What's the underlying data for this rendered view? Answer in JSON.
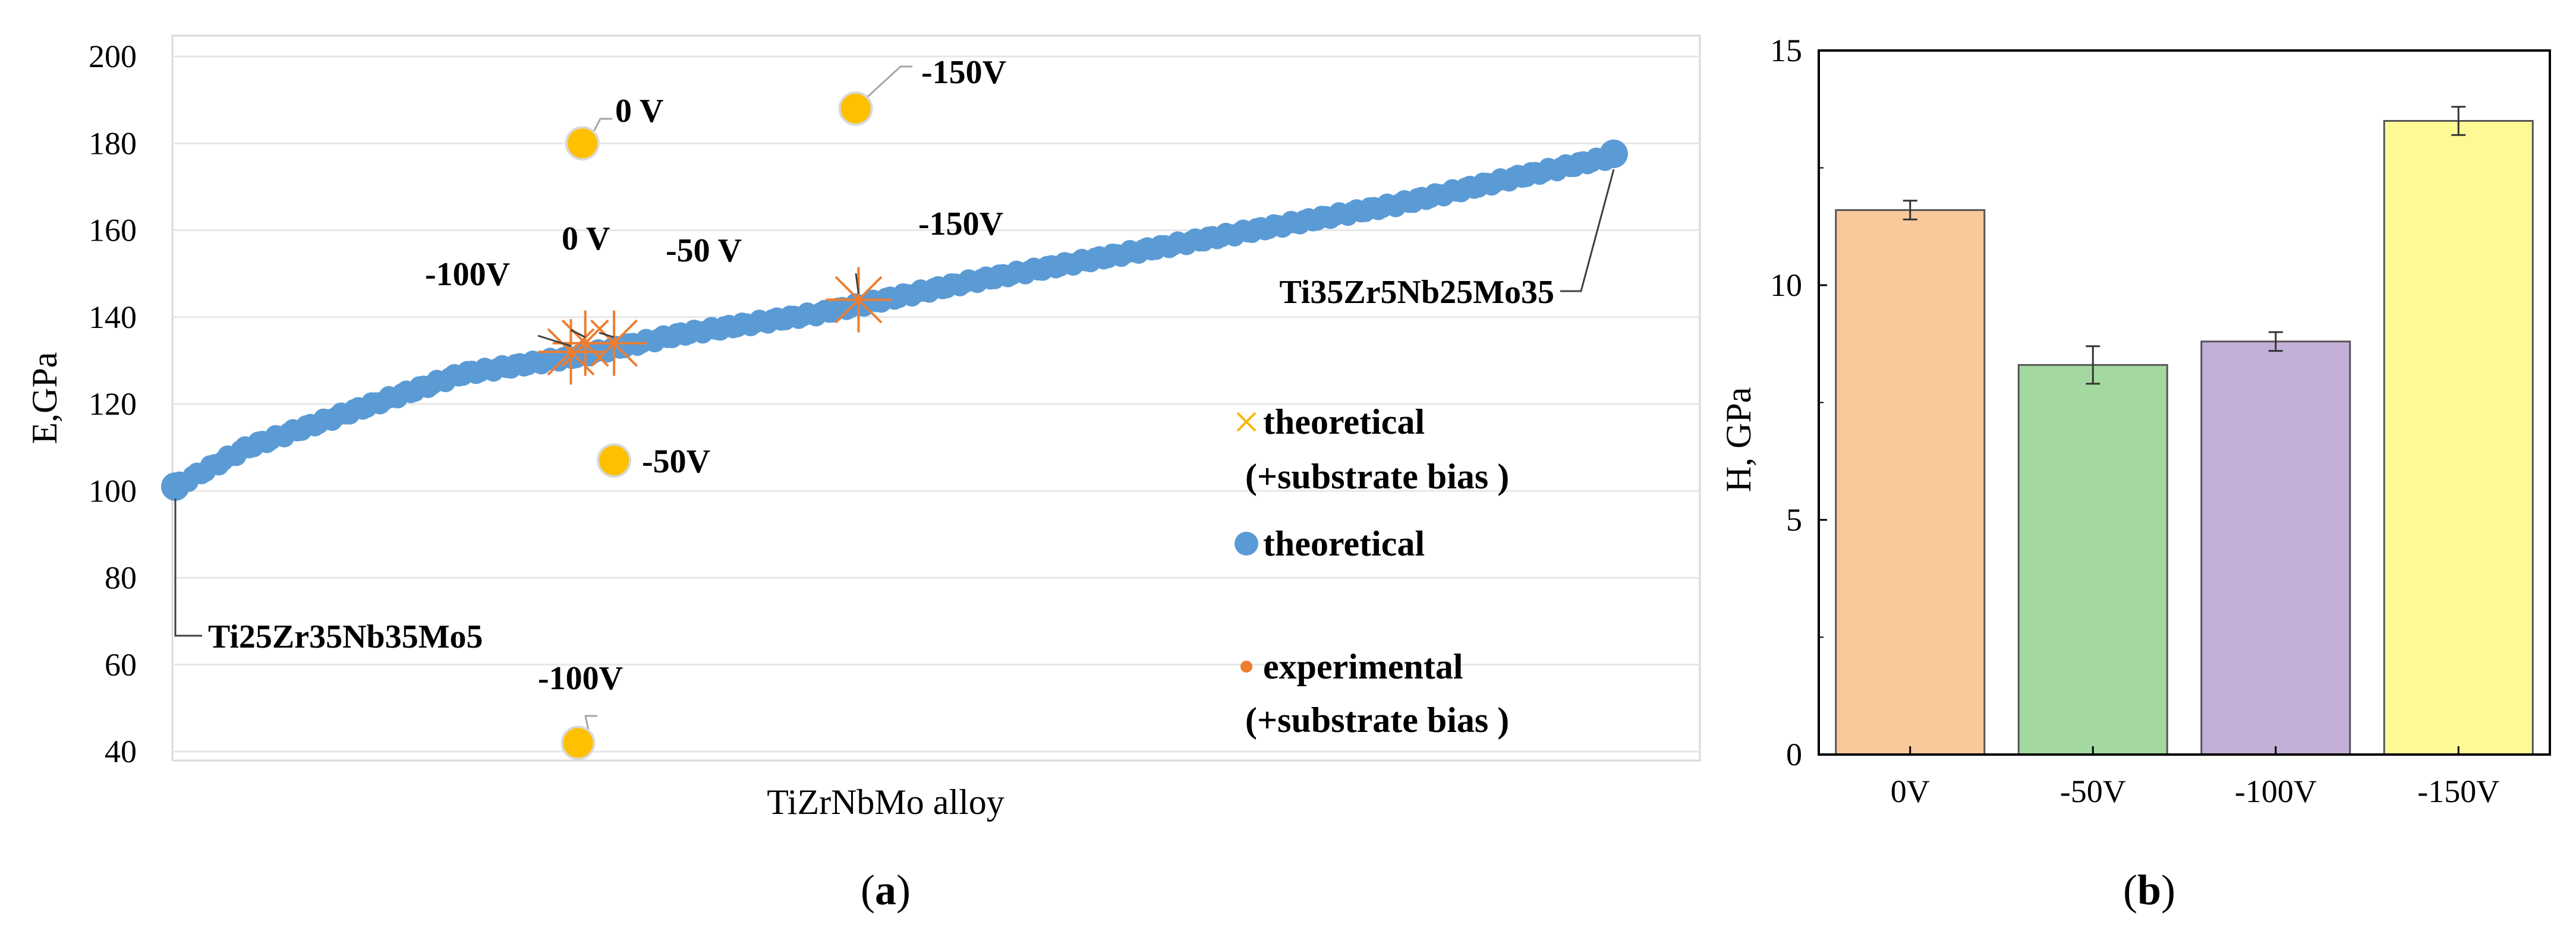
{
  "chart_data": [
    {
      "panel": "a",
      "type": "scatter",
      "xlabel": "TiZrNbMo alloy",
      "ylabel": "E,GPa",
      "ylim": [
        40,
        200
      ],
      "yticks": [
        40,
        60,
        80,
        100,
        120,
        140,
        160,
        180,
        200
      ],
      "grid": "horizontal",
      "legend": [
        {
          "marker": "x",
          "color": "#F5B800",
          "lines": [
            "theoretical",
            "(+substrate bias )"
          ]
        },
        {
          "marker": "circle",
          "color": "#5B9BD5",
          "lines": [
            "theoretical"
          ]
        },
        {
          "marker": "circle-small",
          "color": "#ED7D31",
          "lines": [
            "experimental",
            "(+substrate bias )"
          ]
        }
      ],
      "theoretical_curve": {
        "name": "theoretical",
        "x_range": [
          0,
          1
        ],
        "key_points": [
          [
            0,
            101
          ],
          [
            0.05,
            110
          ],
          [
            0.12,
            118
          ],
          [
            0.2,
            127
          ],
          [
            0.28,
            131
          ],
          [
            0.35,
            136
          ],
          [
            0.45,
            141
          ],
          [
            0.55,
            148
          ],
          [
            0.65,
            154
          ],
          [
            0.75,
            160
          ],
          [
            0.85,
            166
          ],
          [
            0.93,
            172
          ],
          [
            1.0,
            177
          ]
        ]
      },
      "end_labels": [
        {
          "label": "Ti25Zr35Nb35Mo5",
          "x": 0,
          "y": 101
        },
        {
          "label": "Ti35Zr5Nb25Mo35",
          "x": 1.0,
          "y": 177
        }
      ],
      "theoretical_bias": [
        {
          "label": "-100V",
          "x": 0.275,
          "y": 132
        },
        {
          "label": "0 V",
          "x": 0.285,
          "y": 134
        },
        {
          "label": "-50 V",
          "x": 0.305,
          "y": 134
        },
        {
          "label": "-150V",
          "x": 0.475,
          "y": 144
        }
      ],
      "experimental_bias": [
        {
          "label": "0 V",
          "x": 0.283,
          "y": 180
        },
        {
          "label": "-150V",
          "x": 0.473,
          "y": 188
        },
        {
          "label": "-50V",
          "x": 0.305,
          "y": 107
        },
        {
          "label": "-100V",
          "x": 0.28,
          "y": 42
        }
      ],
      "caption": "(a)"
    },
    {
      "panel": "b",
      "type": "bar",
      "categories": [
        "0V",
        "-50V",
        "-100V",
        "-150V"
      ],
      "values": [
        11.6,
        8.3,
        8.8,
        13.5
      ],
      "errors": [
        0.2,
        0.4,
        0.2,
        0.3
      ],
      "colors": [
        "#F9C89B",
        "#A3D9A0",
        "#C3AFD7",
        "#FDFA96"
      ],
      "ylabel": "H, GPa",
      "ylim": [
        0,
        15
      ],
      "yticks": [
        0,
        5,
        10,
        15
      ],
      "caption": "(b)"
    }
  ]
}
